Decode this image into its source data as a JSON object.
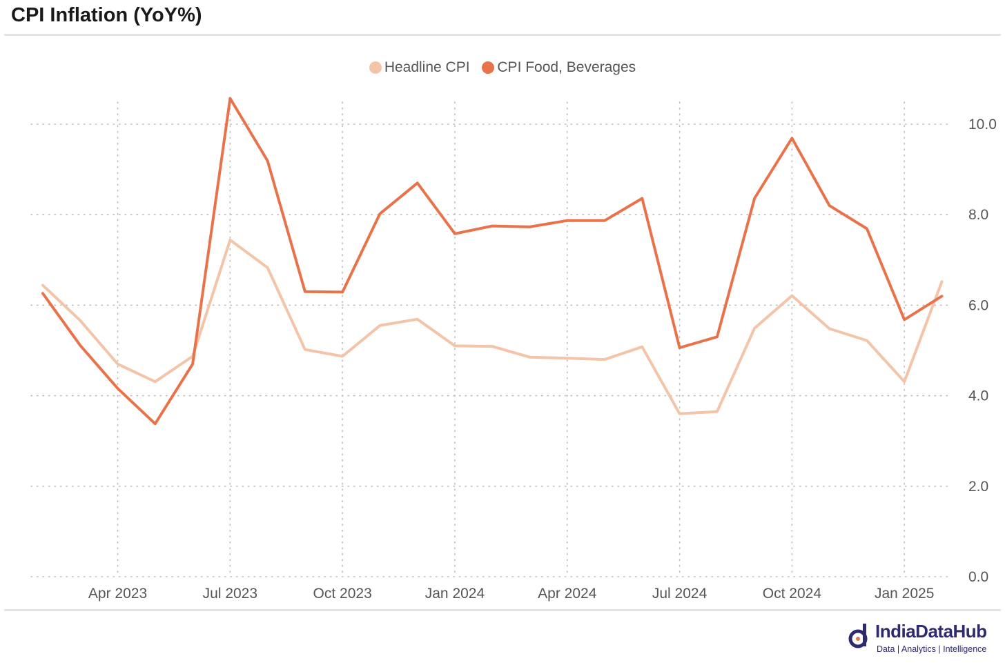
{
  "title": "CPI Inflation (YoY%)",
  "brand": {
    "name": "IndiaDataHub",
    "tagline": "Data | Analytics | Intelligence",
    "color": "#2d2a6e"
  },
  "chart_data": {
    "type": "line",
    "title": "CPI Inflation (YoY%)",
    "legend_position": "top-center",
    "grid": true,
    "ylim": [
      0,
      10
    ],
    "y_ticks": [
      "0.0",
      "2.0",
      "4.0",
      "6.0",
      "8.0",
      "10.0"
    ],
    "y_tick_values": [
      0,
      2,
      4,
      6,
      8,
      10
    ],
    "x": [
      "2023-02",
      "2023-03",
      "2023-04",
      "2023-05",
      "2023-06",
      "2023-07",
      "2023-08",
      "2023-09",
      "2023-10",
      "2023-11",
      "2023-12",
      "2024-01",
      "2024-02",
      "2024-03",
      "2024-04",
      "2024-05",
      "2024-06",
      "2024-07",
      "2024-08",
      "2024-09",
      "2024-10",
      "2024-11",
      "2024-12",
      "2025-01",
      "2025-02"
    ],
    "x_tick_labels": [
      {
        "label": "Apr 2023",
        "month": "2023-04"
      },
      {
        "label": "Jul 2023",
        "month": "2023-07"
      },
      {
        "label": "Oct 2023",
        "month": "2023-10"
      },
      {
        "label": "Jan 2024",
        "month": "2024-01"
      },
      {
        "label": "Apr 2024",
        "month": "2024-04"
      },
      {
        "label": "Jul 2024",
        "month": "2024-07"
      },
      {
        "label": "Oct 2024",
        "month": "2024-10"
      },
      {
        "label": "Jan 2025",
        "month": "2025-01"
      }
    ],
    "series": [
      {
        "name": "Headline CPI",
        "color": "#f4c4a8",
        "values": [
          6.44,
          5.66,
          4.7,
          4.31,
          4.87,
          7.44,
          6.83,
          5.02,
          4.87,
          5.55,
          5.69,
          5.1,
          5.09,
          4.85,
          4.83,
          4.8,
          5.08,
          3.6,
          3.65,
          5.49,
          6.21,
          5.48,
          5.22,
          4.31,
          6.52
        ]
      },
      {
        "name": "CPI Food, Beverages",
        "color": "#e8734a",
        "values": [
          6.26,
          5.11,
          4.16,
          3.38,
          4.7,
          10.57,
          9.19,
          6.3,
          6.29,
          8.02,
          8.7,
          7.58,
          7.75,
          7.73,
          7.87,
          7.87,
          8.36,
          5.06,
          5.3,
          8.36,
          9.69,
          8.2,
          7.69,
          5.68,
          6.2
        ]
      }
    ]
  }
}
